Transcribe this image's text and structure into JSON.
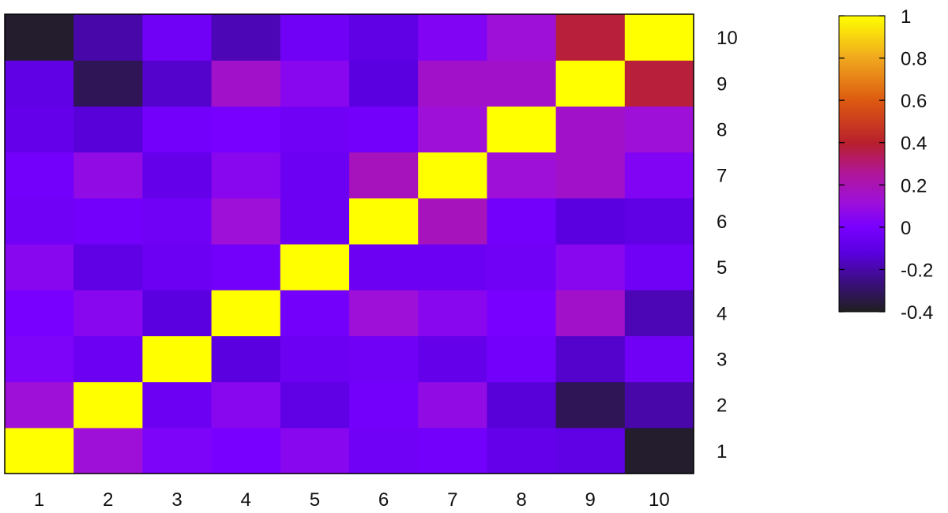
{
  "chart_data": {
    "type": "heatmap",
    "title": "",
    "xlabel": "",
    "ylabel": "",
    "x_categories": [
      "1",
      "2",
      "3",
      "4",
      "5",
      "6",
      "7",
      "8",
      "9",
      "10"
    ],
    "y_categories": [
      "1",
      "2",
      "3",
      "4",
      "5",
      "6",
      "7",
      "8",
      "9",
      "10"
    ],
    "y_axis_side": "right",
    "values": [
      [
        1.0,
        0.12,
        0.02,
        0.0,
        0.05,
        -0.03,
        -0.02,
        -0.08,
        -0.1,
        -0.38
      ],
      [
        0.12,
        1.0,
        -0.05,
        0.05,
        -0.1,
        -0.02,
        0.08,
        -0.13,
        -0.32,
        -0.2
      ],
      [
        0.02,
        -0.05,
        1.0,
        -0.12,
        -0.05,
        -0.03,
        -0.08,
        -0.02,
        -0.15,
        -0.03
      ],
      [
        0.0,
        0.05,
        -0.12,
        1.0,
        -0.02,
        0.12,
        0.05,
        0.0,
        0.15,
        -0.18
      ],
      [
        0.05,
        -0.1,
        -0.05,
        -0.02,
        1.0,
        -0.05,
        -0.05,
        -0.03,
        0.05,
        -0.03
      ],
      [
        -0.03,
        -0.02,
        -0.03,
        0.12,
        -0.05,
        1.0,
        0.18,
        -0.02,
        -0.12,
        -0.1
      ],
      [
        -0.02,
        0.08,
        -0.08,
        0.05,
        -0.05,
        0.18,
        1.0,
        0.12,
        0.15,
        0.03
      ],
      [
        -0.08,
        -0.13,
        -0.02,
        0.0,
        -0.03,
        -0.02,
        0.12,
        1.0,
        0.15,
        0.12
      ],
      [
        -0.1,
        -0.32,
        -0.15,
        0.15,
        0.05,
        -0.12,
        0.15,
        0.15,
        1.0,
        0.38
      ],
      [
        -0.38,
        -0.2,
        -0.03,
        -0.18,
        -0.03,
        -0.1,
        0.03,
        0.12,
        0.38,
        1.0
      ]
    ],
    "colorbar": {
      "min": -0.4,
      "max": 1,
      "ticks": [
        1,
        0.8,
        0.6,
        0.4,
        0.2,
        0,
        -0.2,
        -0.4
      ],
      "tick_labels": [
        "1",
        "0.8",
        "0.6",
        "0.4",
        "0.2",
        "0",
        "-0.2",
        "-0.4"
      ],
      "colormap": [
        {
          "v": -0.4,
          "c": "#1f1f1f"
        },
        {
          "v": -0.25,
          "c": "#3d0d86"
        },
        {
          "v": -0.12,
          "c": "#5a00e0"
        },
        {
          "v": 0.0,
          "c": "#7800ff"
        },
        {
          "v": 0.12,
          "c": "#9e10d8"
        },
        {
          "v": 0.25,
          "c": "#b0169c"
        },
        {
          "v": 0.4,
          "c": "#b8202c"
        },
        {
          "v": 0.6,
          "c": "#dd5a10"
        },
        {
          "v": 0.8,
          "c": "#f0a81e"
        },
        {
          "v": 1.0,
          "c": "#ffff00"
        }
      ]
    },
    "grid": false,
    "legend": "colorbar-right"
  }
}
